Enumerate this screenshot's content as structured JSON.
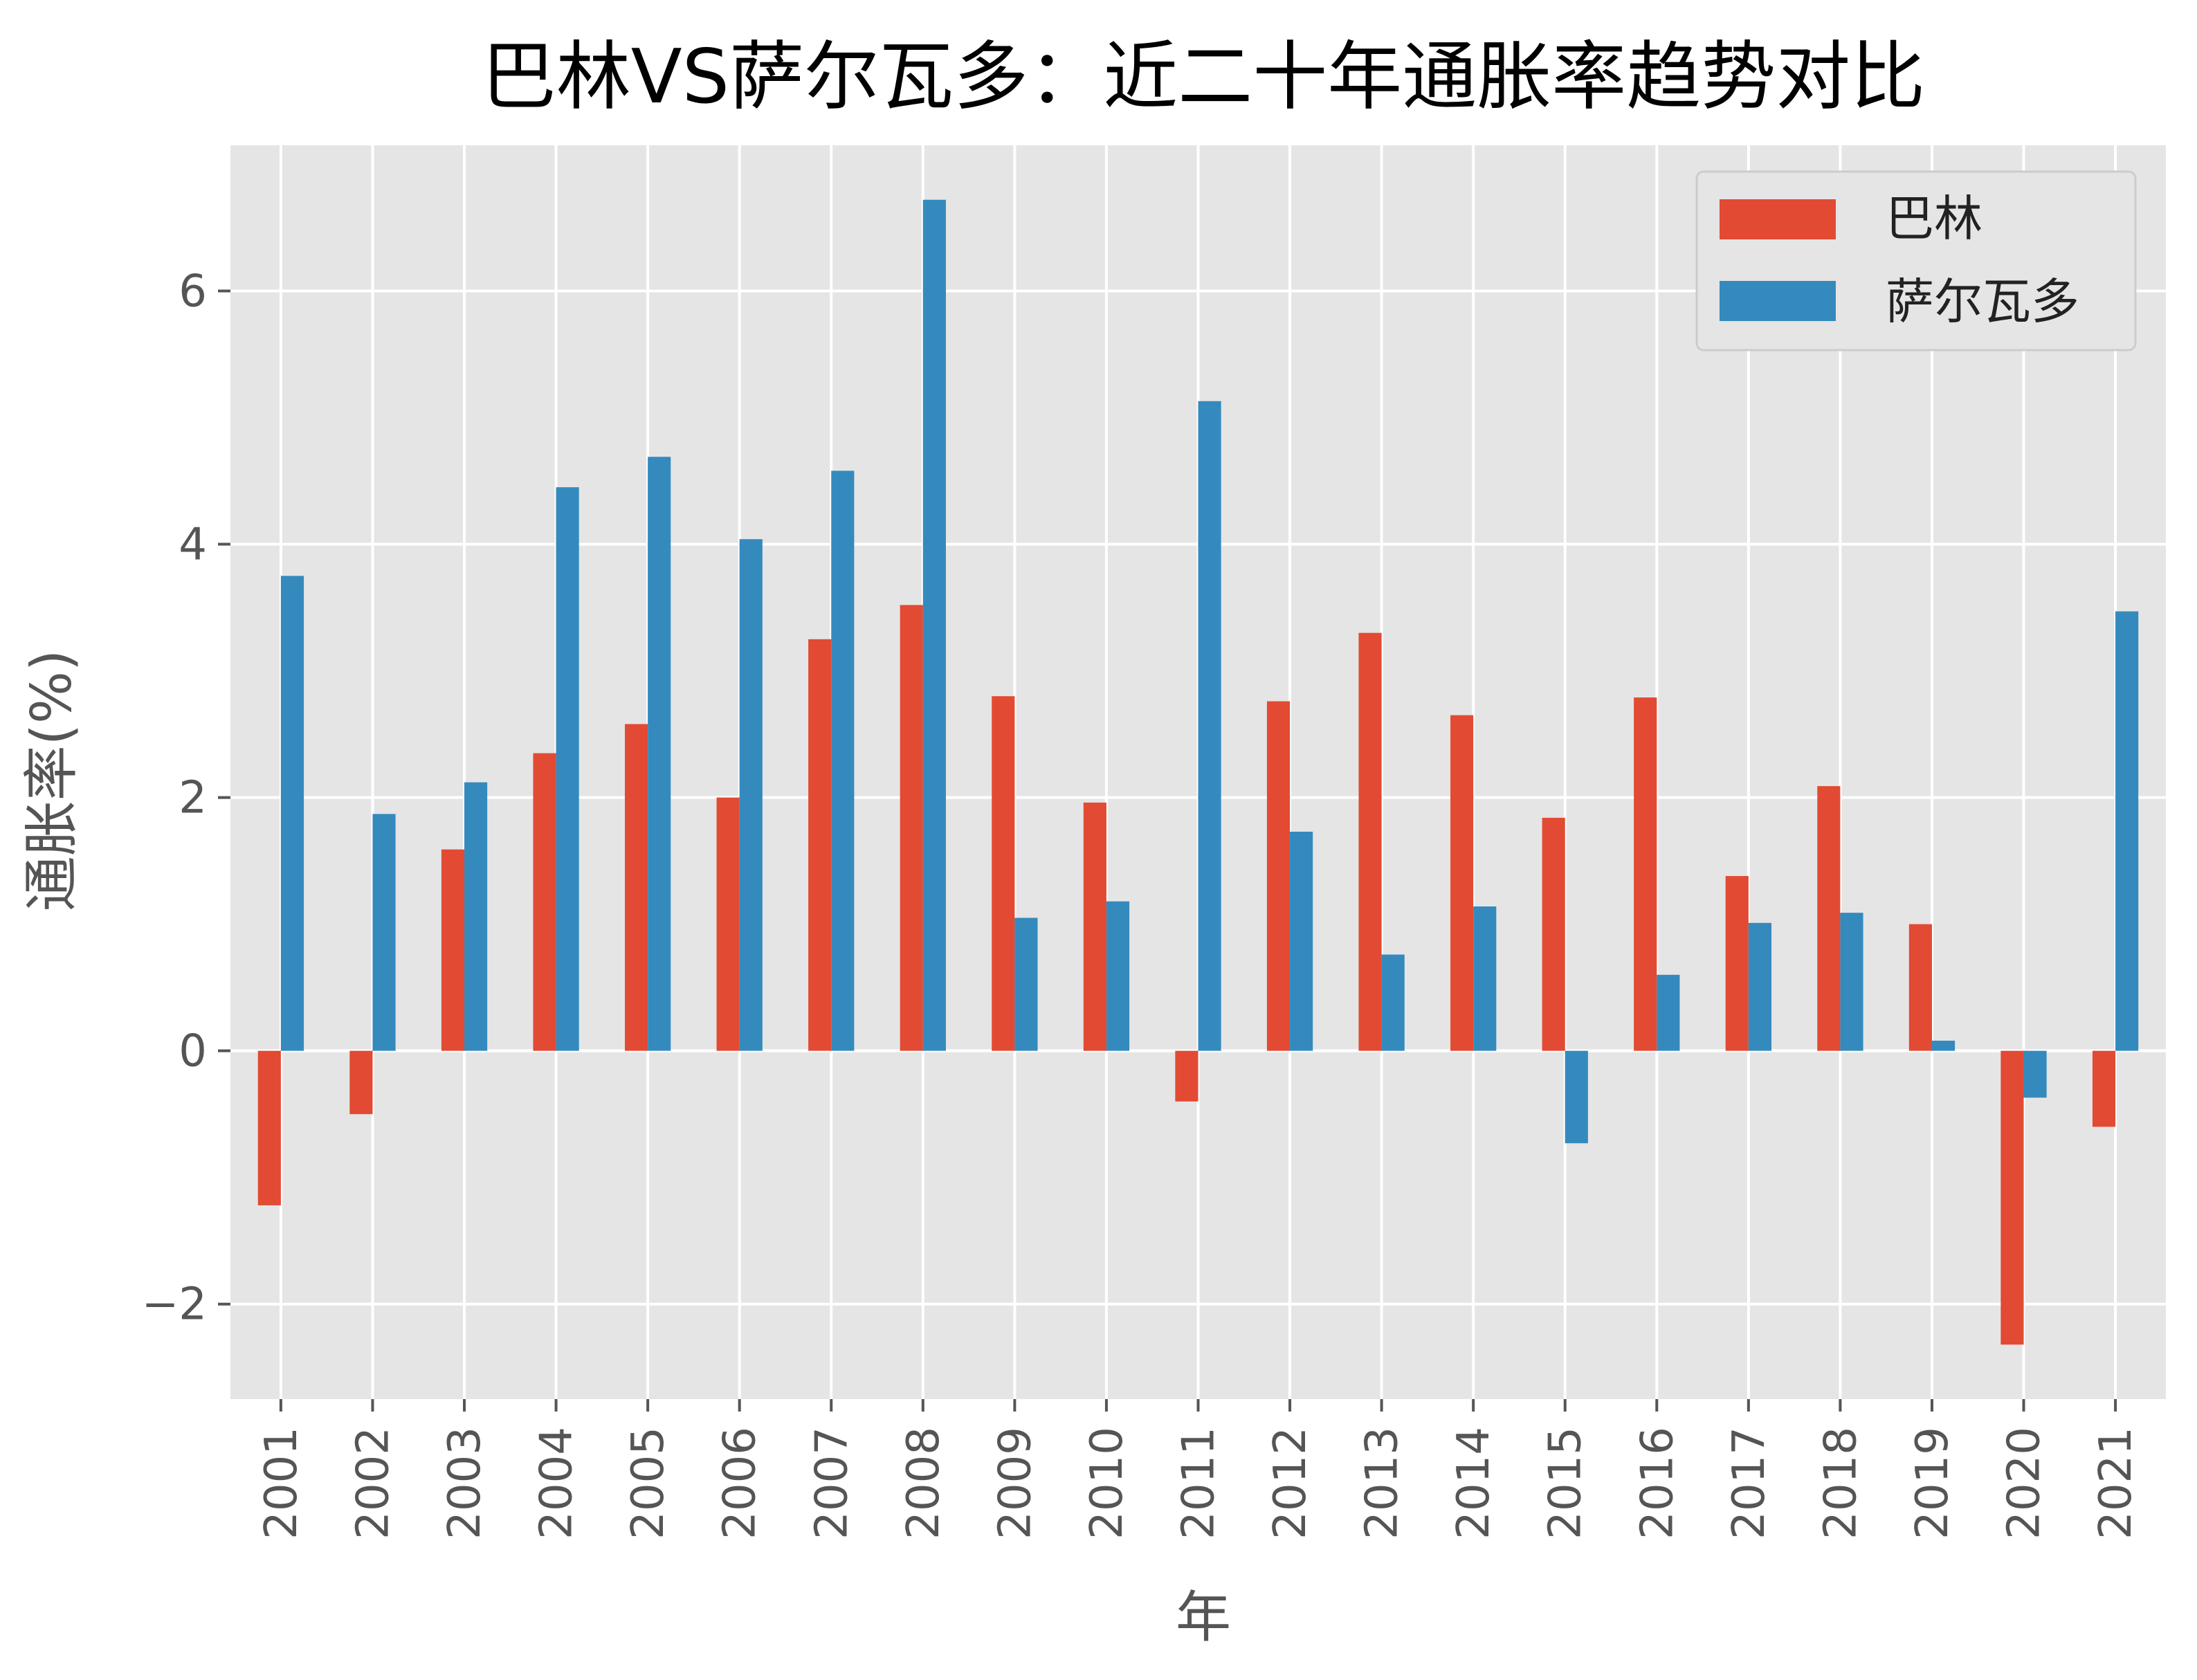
{
  "chart_data": {
    "type": "bar",
    "title": "巴林VS萨尔瓦多：近二十年通胀率趋势对比",
    "xlabel": "年",
    "ylabel": "通胀率(%)",
    "categories": [
      "2001",
      "2002",
      "2003",
      "2004",
      "2005",
      "2006",
      "2007",
      "2008",
      "2009",
      "2010",
      "2011",
      "2012",
      "2013",
      "2014",
      "2015",
      "2016",
      "2017",
      "2018",
      "2019",
      "2020",
      "2021"
    ],
    "series": [
      {
        "name": "巴林",
        "color": "#E24A33",
        "values": [
          -1.22,
          -0.5,
          1.59,
          2.35,
          2.58,
          2.0,
          3.25,
          3.52,
          2.8,
          1.96,
          -0.4,
          2.76,
          3.3,
          2.65,
          1.84,
          2.79,
          1.38,
          2.09,
          1.0,
          -2.32,
          -0.6
        ]
      },
      {
        "name": "萨尔瓦多",
        "color": "#348ABD",
        "values": [
          3.75,
          1.87,
          2.12,
          4.45,
          4.69,
          4.04,
          4.58,
          6.72,
          1.05,
          1.18,
          5.13,
          1.73,
          0.76,
          1.14,
          -0.73,
          0.6,
          1.01,
          1.09,
          0.08,
          -0.37,
          3.47
        ]
      }
    ],
    "ylim": [
      -2.75,
      7.15
    ],
    "yticks": [
      -2,
      0,
      2,
      4,
      6
    ],
    "grid": true,
    "legend_position": "top-right",
    "background_color": "#E5E5E5",
    "grid_color": "#FFFFFF"
  }
}
